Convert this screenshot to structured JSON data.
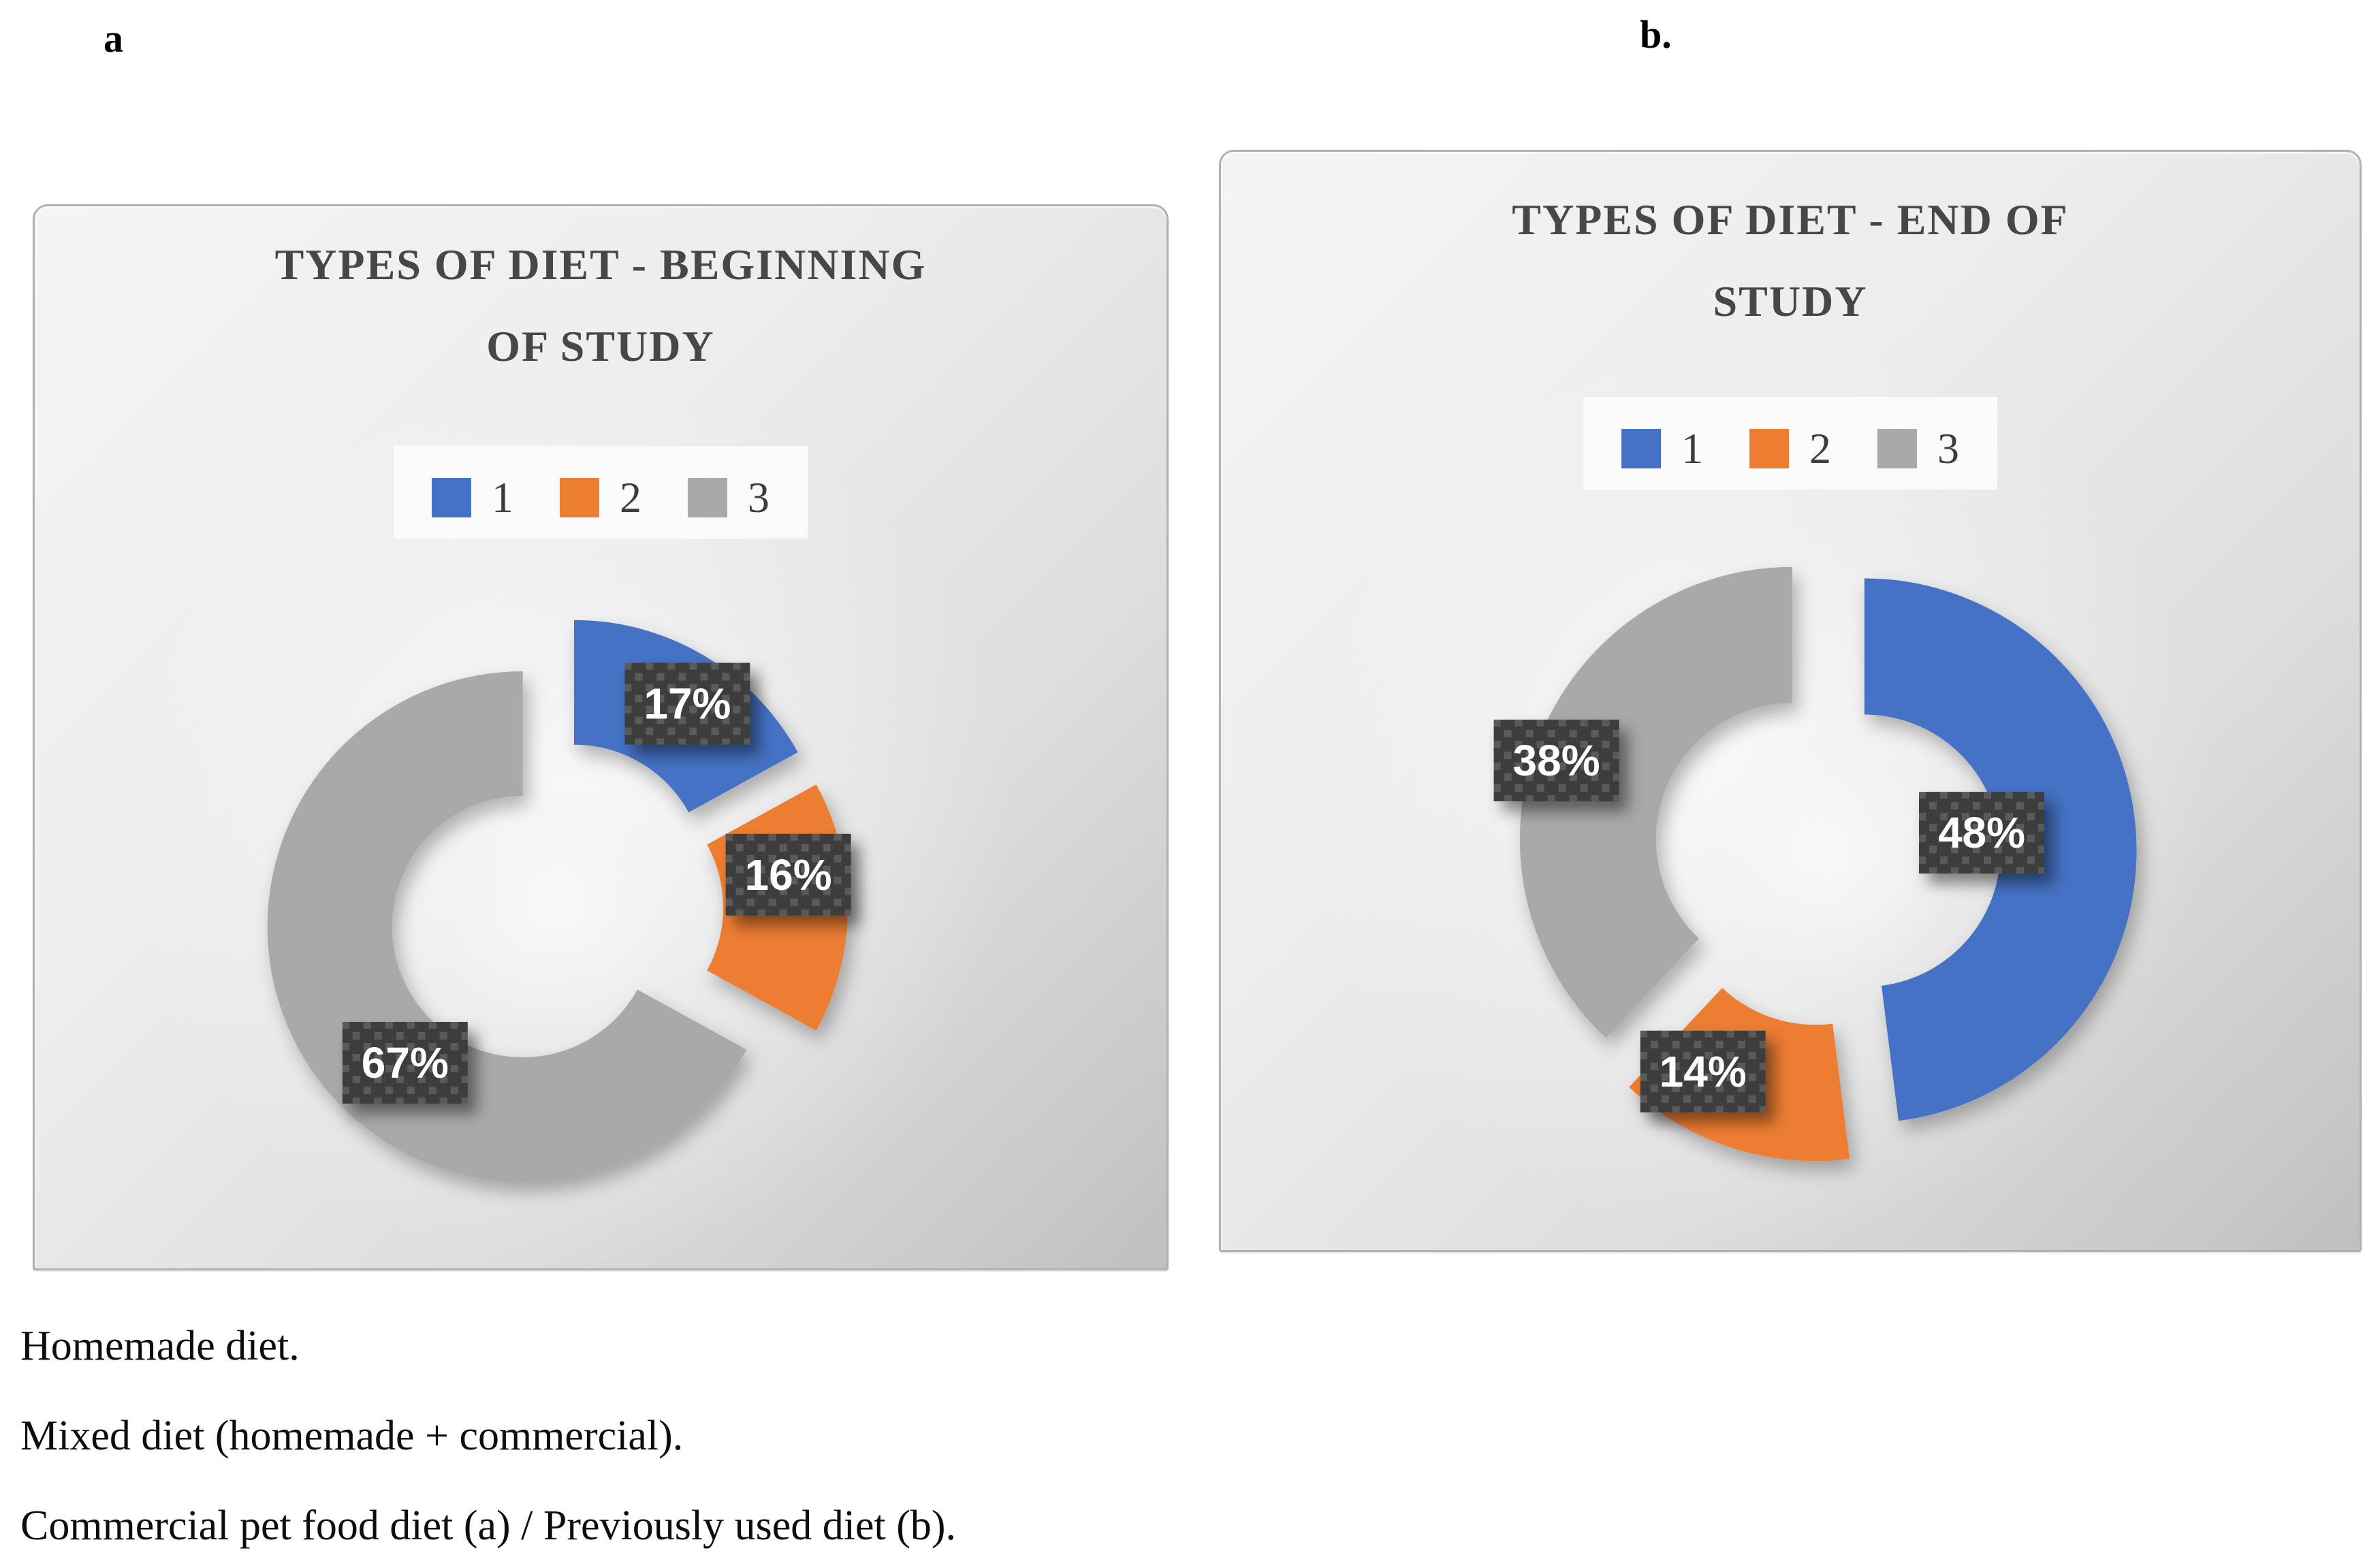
{
  "figure_labels": {
    "a": "a",
    "b": "b."
  },
  "chart_data": [
    {
      "type": "donut",
      "panel": "a",
      "title": "TYPES OF DIET - BEGINNING OF STUDY",
      "title_lines": [
        "TYPES OF DIET - BEGINNING",
        "OF STUDY"
      ],
      "legend": {
        "position": "top",
        "entries": [
          "1",
          "2",
          "3"
        ]
      },
      "categories": [
        "1",
        "2",
        "3"
      ],
      "values": [
        17,
        16,
        67
      ],
      "series": [
        {
          "name": "1",
          "value": 17,
          "label": "17%",
          "color": "#4472C4"
        },
        {
          "name": "2",
          "value": 16,
          "label": "16%",
          "color": "#ED7D31"
        },
        {
          "name": "3",
          "value": 67,
          "label": "67%",
          "color": "#A9A9A9"
        }
      ],
      "label_format": "percent",
      "start_angle_deg": 0,
      "direction": "clockwise",
      "hole_ratio": 0.51,
      "exploded": true
    },
    {
      "type": "donut",
      "panel": "b",
      "title": "TYPES OF DIET - END OF STUDY",
      "title_lines": [
        "TYPES OF DIET - END OF",
        "STUDY"
      ],
      "legend": {
        "position": "top",
        "entries": [
          "1",
          "2",
          "3"
        ]
      },
      "categories": [
        "1",
        "2",
        "3"
      ],
      "values": [
        48,
        14,
        38
      ],
      "series": [
        {
          "name": "1",
          "value": 48,
          "label": "48%",
          "color": "#4472C4"
        },
        {
          "name": "2",
          "value": 14,
          "label": "14%",
          "color": "#ED7D31"
        },
        {
          "name": "3",
          "value": 38,
          "label": "38%",
          "color": "#A9A9A9"
        }
      ],
      "label_format": "percent",
      "start_angle_deg": 0,
      "direction": "clockwise",
      "hole_ratio": 0.5,
      "exploded": true
    }
  ],
  "data_label_style": {
    "background": "#3E3E3E",
    "dot_color": "#5A5A5A",
    "text_color": "#FFFFFF"
  },
  "footnotes": [
    "Homemade diet.",
    "Mixed diet (homemade + commercial).",
    "Commercial pet food diet (a) / Previously used diet (b)."
  ]
}
